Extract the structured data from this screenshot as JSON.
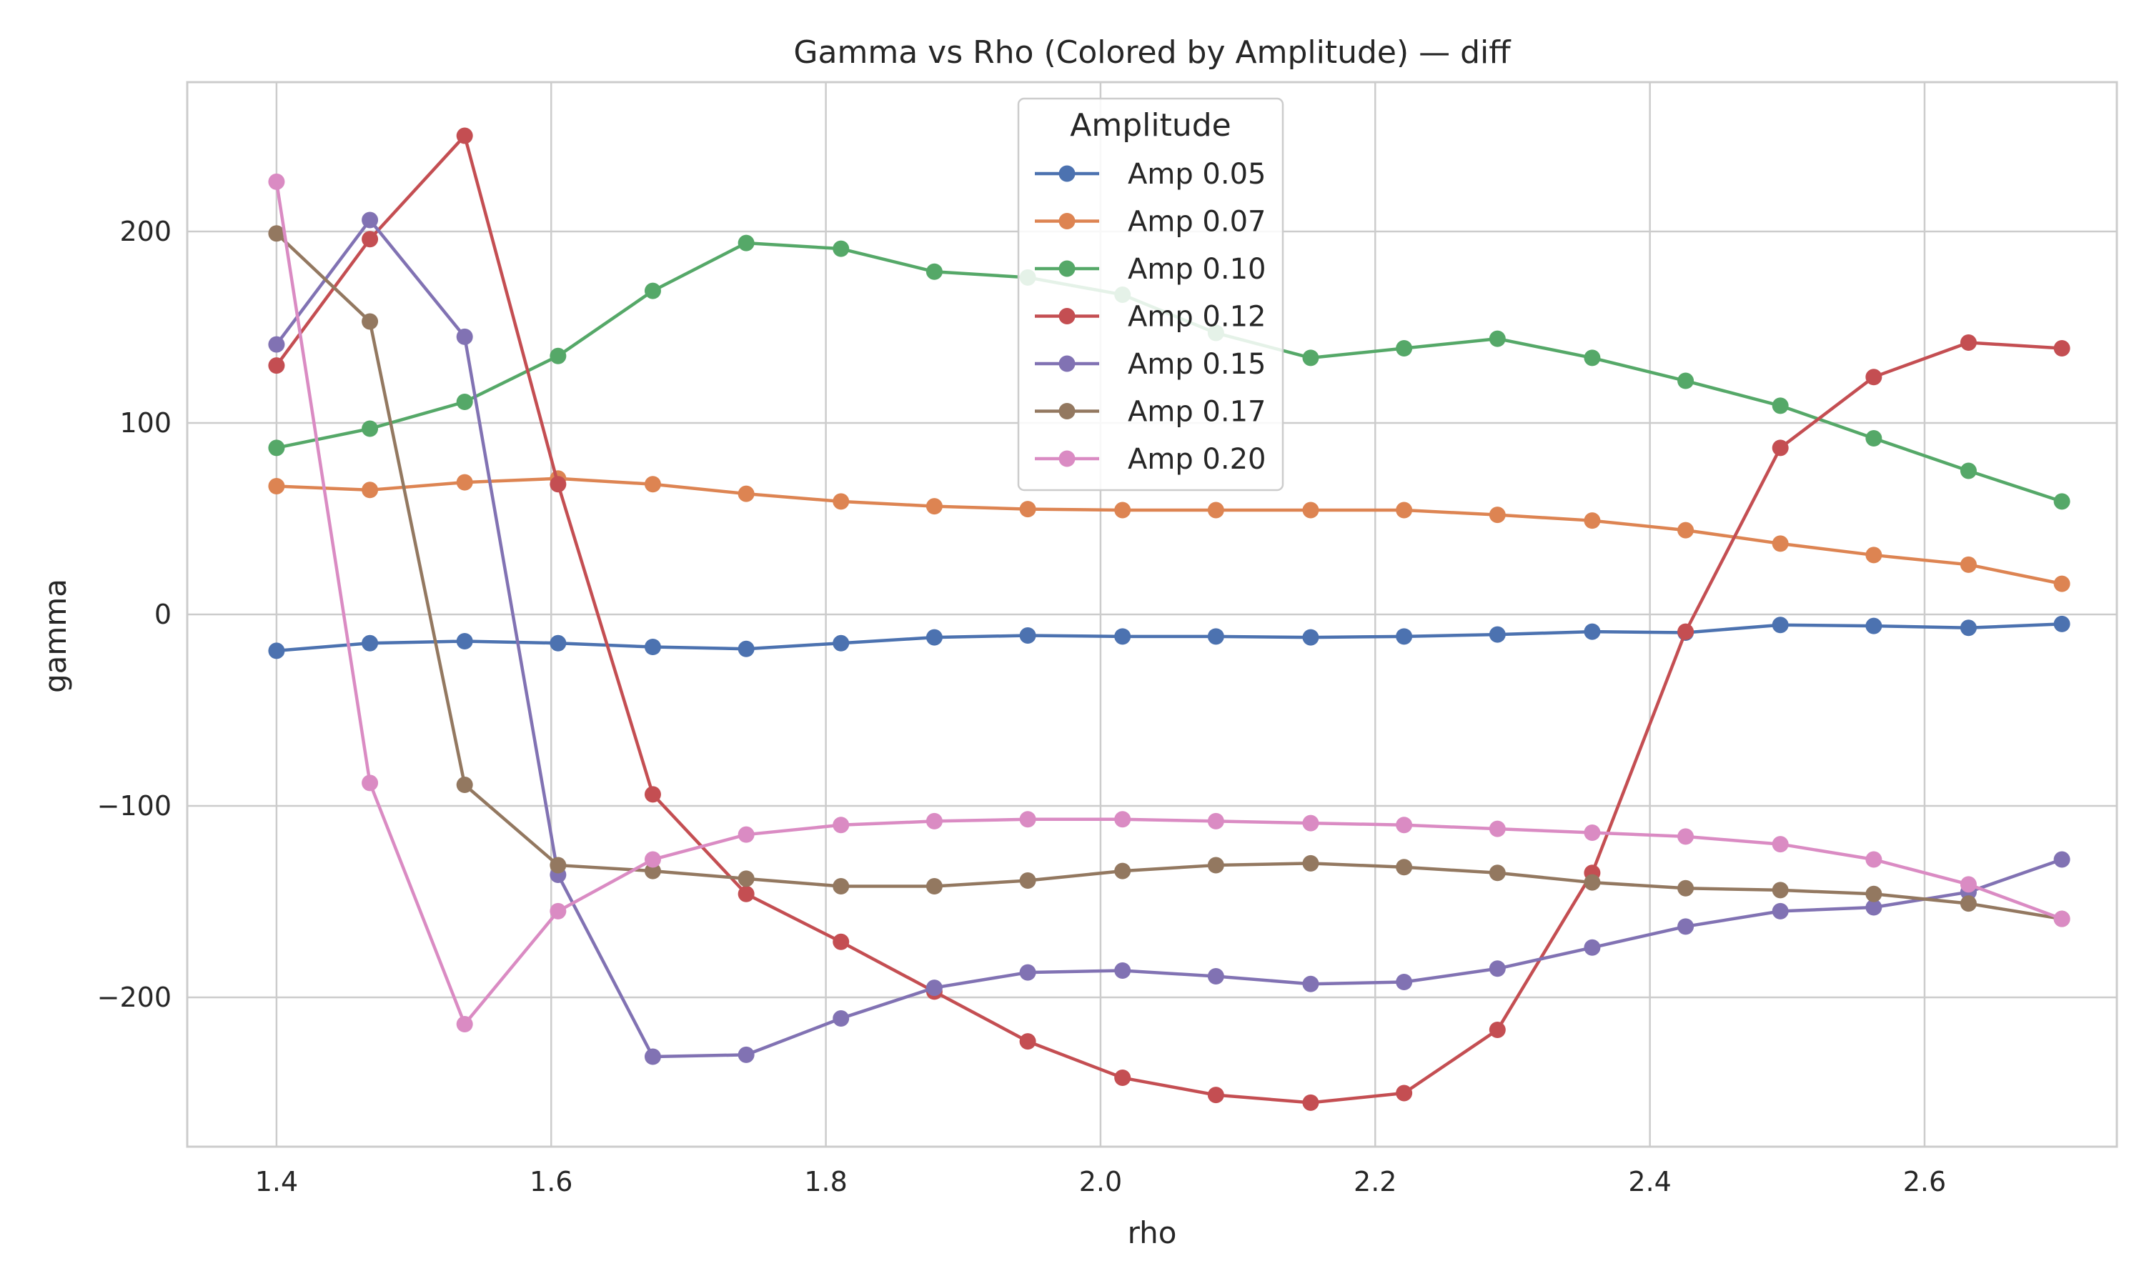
{
  "chart_data": {
    "type": "line",
    "title": "Gamma vs Rho (Colored by Amplitude) — diff",
    "xlabel": "rho",
    "ylabel": "gamma",
    "xlim": [
      1.335,
      2.74
    ],
    "ylim": [
      -278,
      278
    ],
    "grid": true,
    "xticks": [
      1.4,
      1.6,
      1.8,
      2.0,
      2.2,
      2.4,
      2.6
    ],
    "yticks": [
      -200,
      -100,
      0,
      100,
      200
    ],
    "xtick_labels": [
      "1.4",
      "1.6",
      "1.8",
      "2.0",
      "2.2",
      "2.4",
      "2.6"
    ],
    "ytick_labels": [
      "−200",
      "−100",
      "0",
      "100",
      "200"
    ],
    "legend": {
      "title": "Amplitude",
      "position": "upper center"
    },
    "x": [
      1.4,
      1.468,
      1.537,
      1.605,
      1.674,
      1.742,
      1.811,
      1.879,
      1.947,
      2.016,
      2.084,
      2.153,
      2.221,
      2.289,
      2.358,
      2.426,
      2.495,
      2.563,
      2.632,
      2.7
    ],
    "series": [
      {
        "name": "Amp 0.05",
        "color": "#4c72b0",
        "values": [
          -19,
          -15,
          -14,
          -15,
          -17,
          -18,
          -15,
          -12,
          -11,
          -11.5,
          -11.5,
          -12,
          -11.5,
          -10.5,
          -9,
          -9.5,
          -5.5,
          -6,
          -7,
          -5
        ]
      },
      {
        "name": "Amp 0.07",
        "color": "#dd8452",
        "values": [
          67,
          65,
          69,
          71,
          68,
          63,
          59,
          56.5,
          55,
          54.5,
          54.5,
          54.5,
          54.5,
          52,
          49,
          44,
          37,
          31,
          26,
          16
        ]
      },
      {
        "name": "Amp 0.10",
        "color": "#55a868",
        "values": [
          87,
          97,
          111,
          135,
          169,
          194,
          191,
          179,
          176,
          167,
          147,
          134,
          139,
          144,
          134,
          122,
          109,
          92,
          75,
          59
        ]
      },
      {
        "name": "Amp 0.12",
        "color": "#c44e52",
        "values": [
          130,
          196,
          250,
          68,
          -94,
          -146,
          -171,
          -197,
          -223,
          -242,
          -251,
          -255,
          -250,
          -217,
          -135,
          -9,
          87,
          124,
          142,
          139
        ]
      },
      {
        "name": "Amp 0.15",
        "color": "#8172b3",
        "values": [
          141,
          206,
          145,
          -136,
          -231,
          -230,
          -211,
          -195,
          -187,
          -186,
          -189,
          -193,
          -192,
          -185,
          -174,
          -163,
          -155,
          -153,
          -145,
          -128
        ]
      },
      {
        "name": "Amp 0.17",
        "color": "#937860",
        "values": [
          199,
          153,
          -89,
          -131,
          -134,
          -138,
          -142,
          -142,
          -139,
          -134,
          -131,
          -130,
          -132,
          -135,
          -140,
          -143,
          -144,
          -146,
          -151,
          -159
        ]
      },
      {
        "name": "Amp 0.20",
        "color": "#da8bc3",
        "values": [
          226,
          -88,
          -214,
          -155,
          -128,
          -115,
          -110,
          -108,
          -107,
          -107,
          -108,
          -109,
          -110,
          -112,
          -114,
          -116,
          -120,
          -128,
          -141,
          -159
        ]
      }
    ]
  }
}
